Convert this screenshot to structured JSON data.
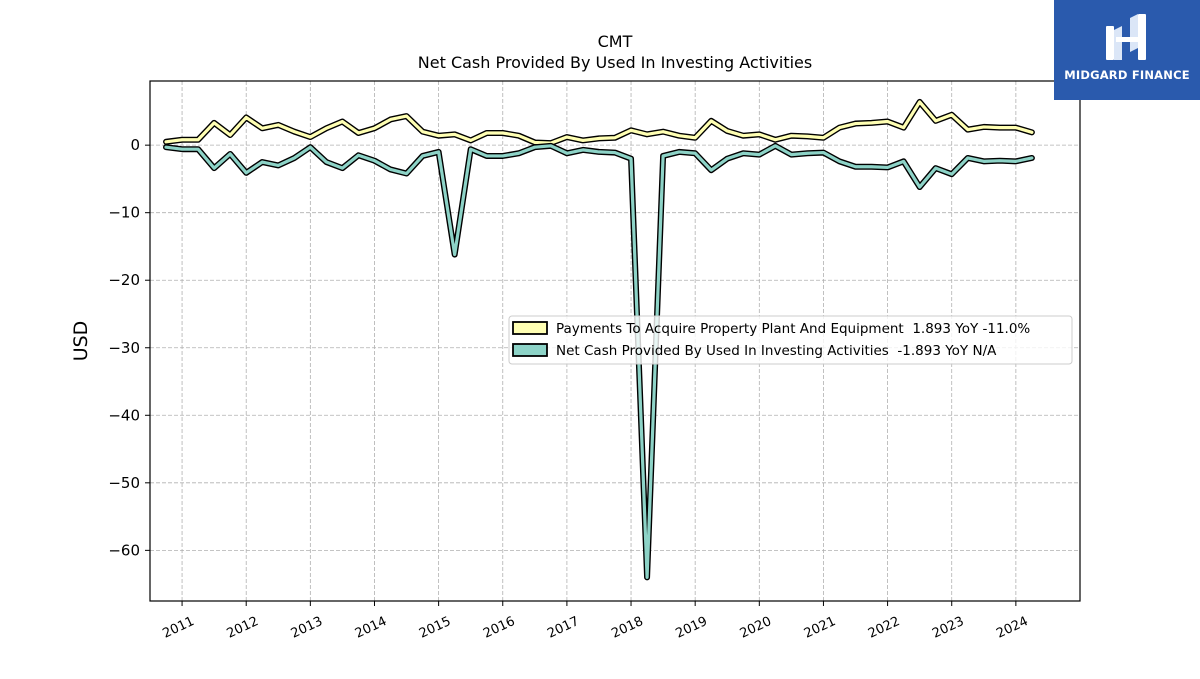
{
  "brand": {
    "name": "MIDGARD FINANCE",
    "mark_icon": "midgard-logo-icon",
    "background": "#2a5aad"
  },
  "chart_data": {
    "type": "line",
    "title": "CMT",
    "subtitle": "Net Cash Provided By Used In Investing Activities",
    "xlabel": "",
    "ylabel": "USD",
    "xlim": [
      2010.5,
      2025.0
    ],
    "ylim": [
      -67.5,
      9.5
    ],
    "x_ticks": [
      2011,
      2012,
      2013,
      2014,
      2015,
      2016,
      2017,
      2018,
      2019,
      2020,
      2021,
      2022,
      2023,
      2024
    ],
    "y_ticks": [
      0,
      -10,
      -20,
      -30,
      -40,
      -50,
      -60
    ],
    "y_tick_labels": [
      "0",
      "−10",
      "−20",
      "−30",
      "−40",
      "−50",
      "−60"
    ],
    "grid": true,
    "legend_position": "center-right",
    "x": [
      2010.75,
      2011.0,
      2011.25,
      2011.5,
      2011.75,
      2012.0,
      2012.25,
      2012.5,
      2012.75,
      2013.0,
      2013.25,
      2013.5,
      2013.75,
      2014.0,
      2014.25,
      2014.5,
      2014.75,
      2015.0,
      2015.25,
      2015.5,
      2015.75,
      2016.0,
      2016.25,
      2016.5,
      2016.75,
      2017.0,
      2017.25,
      2017.5,
      2017.75,
      2018.0,
      2018.25,
      2018.5,
      2018.75,
      2019.0,
      2019.25,
      2019.5,
      2019.75,
      2020.0,
      2020.25,
      2020.5,
      2020.75,
      2021.0,
      2021.25,
      2021.5,
      2021.75,
      2022.0,
      2022.25,
      2022.5,
      2022.75,
      2023.0,
      2023.25,
      2023.5,
      2023.75,
      2024.0,
      2024.25
    ],
    "series": [
      {
        "name": "Payments To Acquire Property Plant And Equipment  1.893 YoY -11.0%",
        "color": "#ffffb3",
        "values": [
          0.5,
          0.8,
          0.8,
          3.3,
          1.5,
          4.1,
          2.5,
          3.0,
          2.0,
          1.2,
          2.5,
          3.5,
          1.8,
          2.5,
          3.8,
          4.3,
          2.0,
          1.4,
          1.6,
          0.7,
          1.8,
          1.8,
          1.4,
          0.4,
          0.3,
          1.2,
          0.7,
          1.0,
          1.1,
          2.2,
          1.6,
          2.0,
          1.4,
          1.1,
          3.6,
          2.1,
          1.4,
          1.6,
          0.8,
          1.4,
          1.3,
          1.1,
          2.6,
          3.2,
          3.3,
          3.5,
          2.6,
          6.4,
          3.6,
          4.5,
          2.3,
          2.7,
          2.6,
          2.6,
          1.9
        ]
      },
      {
        "name": "Net Cash Provided By Used In Investing Activities  -1.893 YoY N/A",
        "color": "#8dd3c7",
        "values": [
          -0.3,
          -0.6,
          -0.6,
          -3.4,
          -1.3,
          -4.1,
          -2.5,
          -3.0,
          -1.9,
          -0.3,
          -2.5,
          -3.4,
          -1.5,
          -2.3,
          -3.6,
          -4.2,
          -1.6,
          -1.0,
          -16.2,
          -0.6,
          -1.6,
          -1.6,
          -1.2,
          -0.3,
          -0.1,
          -1.2,
          -0.7,
          -1.0,
          -1.1,
          -2.0,
          -64.0,
          -1.6,
          -1.0,
          -1.2,
          -3.7,
          -2.0,
          -1.2,
          -1.4,
          -0.1,
          -1.4,
          -1.2,
          -1.1,
          -2.4,
          -3.2,
          -3.2,
          -3.3,
          -2.4,
          -6.2,
          -3.4,
          -4.3,
          -1.9,
          -2.4,
          -2.3,
          -2.4,
          -1.9
        ]
      }
    ]
  }
}
